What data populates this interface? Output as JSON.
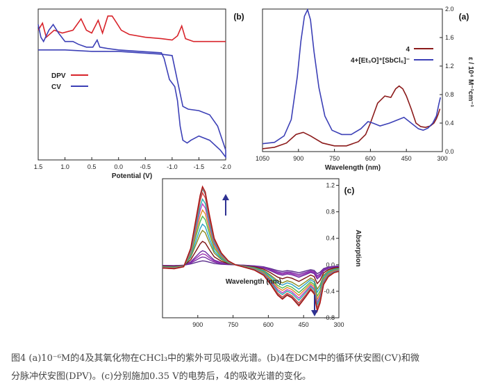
{
  "caption": {
    "line1": "图4 (a)10⁻⁶M的4及其氧化物在CHCl₃中的紫外可见吸收光谱。(b)4在DCM中的循环伏安图(CV)和微",
    "line2": "分脉冲伏安图(DPV)。(c)分别施加0.35 V的电势后，4的吸收光谱的变化。"
  },
  "colors": {
    "red": "#d8232a",
    "blue": "#3b3fb6",
    "dark_red": "#8b1a1a",
    "arrow": "#2e3192"
  },
  "chart_data": [
    {
      "panel": "(a)",
      "type": "line",
      "xlabel": "Wavelength (nm)",
      "ylabel": "ε / 10⁴ M⁻¹cm⁻¹",
      "xlim": [
        1050,
        300
      ],
      "ylim": [
        0.0,
        2.0
      ],
      "xticks": [
        1050,
        900,
        750,
        600,
        450,
        300
      ],
      "yticks": [
        0.0,
        0.4,
        0.8,
        1.2,
        1.6,
        2.0
      ],
      "legend": [
        "4",
        "4+[Et₃O]⁺[SbCl₆]⁻"
      ],
      "legend_position": "top-right",
      "series": [
        {
          "name": "4",
          "color": "#8b1a1a",
          "points": [
            [
              1050,
              0.04
            ],
            [
              1000,
              0.06
            ],
            [
              950,
              0.12
            ],
            [
              910,
              0.24
            ],
            [
              880,
              0.27
            ],
            [
              850,
              0.22
            ],
            [
              800,
              0.12
            ],
            [
              750,
              0.08
            ],
            [
              700,
              0.08
            ],
            [
              650,
              0.14
            ],
            [
              620,
              0.24
            ],
            [
              600,
              0.4
            ],
            [
              570,
              0.68
            ],
            [
              540,
              0.78
            ],
            [
              515,
              0.76
            ],
            [
              495,
              0.88
            ],
            [
              480,
              0.92
            ],
            [
              465,
              0.88
            ],
            [
              450,
              0.78
            ],
            [
              430,
              0.6
            ],
            [
              410,
              0.4
            ],
            [
              390,
              0.35
            ],
            [
              370,
              0.34
            ],
            [
              350,
              0.36
            ],
            [
              335,
              0.4
            ],
            [
              325,
              0.46
            ],
            [
              318,
              0.52
            ],
            [
              310,
              0.6
            ]
          ]
        },
        {
          "name": "4+[Et₃O]⁺[SbCl₆]⁻",
          "color": "#3b3fb6",
          "points": [
            [
              1050,
              0.11
            ],
            [
              1000,
              0.13
            ],
            [
              960,
              0.22
            ],
            [
              930,
              0.45
            ],
            [
              905,
              1.05
            ],
            [
              890,
              1.55
            ],
            [
              875,
              1.9
            ],
            [
              862,
              1.99
            ],
            [
              850,
              1.85
            ],
            [
              835,
              1.4
            ],
            [
              815,
              0.9
            ],
            [
              790,
              0.5
            ],
            [
              760,
              0.3
            ],
            [
              720,
              0.24
            ],
            [
              680,
              0.24
            ],
            [
              640,
              0.32
            ],
            [
              610,
              0.42
            ],
            [
              590,
              0.4
            ],
            [
              560,
              0.36
            ],
            [
              520,
              0.4
            ],
            [
              490,
              0.44
            ],
            [
              460,
              0.48
            ],
            [
              430,
              0.4
            ],
            [
              400,
              0.32
            ],
            [
              380,
              0.3
            ],
            [
              360,
              0.33
            ],
            [
              340,
              0.4
            ],
            [
              325,
              0.5
            ],
            [
              315,
              0.66
            ],
            [
              308,
              0.76
            ]
          ]
        }
      ]
    },
    {
      "panel": "(b)",
      "type": "line",
      "xlabel": "Potential (V)",
      "ylabel": "",
      "xlim": [
        1.5,
        -2.0
      ],
      "xticks": [
        1.5,
        1.0,
        0.5,
        0.0,
        -0.5,
        -1.0,
        -1.5,
        -2.0
      ],
      "xticklabels": [
        "1.5",
        "1.0",
        "0.5",
        "0.0",
        "-0.5",
        "-1.0",
        "-1.5",
        "-2.0"
      ],
      "legend": [
        "DPV",
        "CV"
      ],
      "legend_position": "center-left",
      "series": [
        {
          "name": "DPV",
          "color": "#d8232a",
          "points": [
            [
              1.5,
              0.9
            ],
            [
              1.42,
              0.95
            ],
            [
              1.35,
              0.85
            ],
            [
              1.2,
              0.9
            ],
            [
              1.05,
              0.88
            ],
            [
              0.85,
              0.9
            ],
            [
              0.7,
              0.98
            ],
            [
              0.6,
              0.9
            ],
            [
              0.5,
              0.88
            ],
            [
              0.38,
              0.97
            ],
            [
              0.3,
              0.88
            ],
            [
              0.2,
              1.0
            ],
            [
              0.12,
              1.0
            ],
            [
              0.05,
              0.96
            ],
            [
              -0.05,
              0.9
            ],
            [
              -0.2,
              0.87
            ],
            [
              -0.5,
              0.85
            ],
            [
              -0.8,
              0.84
            ],
            [
              -1.0,
              0.83
            ],
            [
              -1.1,
              0.86
            ],
            [
              -1.18,
              0.93
            ],
            [
              -1.25,
              0.84
            ],
            [
              -1.4,
              0.82
            ],
            [
              -1.7,
              0.82
            ],
            [
              -2.0,
              0.82
            ]
          ]
        },
        {
          "name": "CV",
          "color": "#3b3fb6",
          "points": [
            [
              1.5,
              0.94
            ],
            [
              1.45,
              0.85
            ],
            [
              1.4,
              0.82
            ],
            [
              1.3,
              0.9
            ],
            [
              1.22,
              0.94
            ],
            [
              1.12,
              0.88
            ],
            [
              1.0,
              0.82
            ],
            [
              0.85,
              0.82
            ],
            [
              0.75,
              0.8
            ],
            [
              0.6,
              0.78
            ],
            [
              0.48,
              0.78
            ],
            [
              0.4,
              0.83
            ],
            [
              0.35,
              0.78
            ],
            [
              0.2,
              0.77
            ],
            [
              0.0,
              0.76
            ],
            [
              -0.4,
              0.75
            ],
            [
              -0.8,
              0.74
            ],
            [
              -0.85,
              0.7
            ],
            [
              -0.95,
              0.55
            ],
            [
              -1.05,
              0.5
            ],
            [
              -1.1,
              0.4
            ],
            [
              -1.15,
              0.22
            ],
            [
              -1.2,
              0.12
            ],
            [
              -1.28,
              0.1
            ],
            [
              -1.35,
              0.12
            ],
            [
              -1.5,
              0.15
            ],
            [
              -1.7,
              0.12
            ],
            [
              -1.9,
              0.05
            ],
            [
              -2.0,
              0.0
            ],
            [
              -2.0,
              0.05
            ],
            [
              -1.85,
              0.22
            ],
            [
              -1.7,
              0.3
            ],
            [
              -1.5,
              0.33
            ],
            [
              -1.3,
              0.34
            ],
            [
              -1.2,
              0.36
            ],
            [
              -1.1,
              0.54
            ],
            [
              -1.0,
              0.72
            ],
            [
              -0.8,
              0.73
            ],
            [
              -0.4,
              0.74
            ],
            [
              0.0,
              0.75
            ],
            [
              0.5,
              0.75
            ],
            [
              1.0,
              0.76
            ],
            [
              1.5,
              0.76
            ]
          ]
        }
      ]
    },
    {
      "panel": "(c)",
      "type": "line",
      "xlabel": "Wavelength (nm)",
      "ylabel": "Absorption",
      "xlim": [
        1050,
        300
      ],
      "ylim": [
        -0.8,
        1.3
      ],
      "xticks": [
        900,
        750,
        600,
        450,
        300
      ],
      "yticks": [
        -0.8,
        -0.4,
        0.0,
        0.4,
        0.8,
        1.2
      ],
      "yticklabels": [
        "-0.8",
        "-0.4",
        "0.0",
        "0.4",
        "0.8",
        "1.2"
      ],
      "annotations": [
        "up arrow at 880 nm peak (increasing)",
        "down arrow at 390 nm (decreasing)"
      ],
      "series": [
        {
          "name": "",
          "color": "#5a2d8c",
          "scale": 0.05
        },
        {
          "name": "",
          "color": "#7b2fa8",
          "scale": 0.1
        },
        {
          "name": "",
          "color": "#9b30b0",
          "scale": 0.14
        },
        {
          "name": "",
          "color": "#6d2aa0",
          "scale": 0.18
        },
        {
          "name": "",
          "color": "#7a1010",
          "scale": 0.3
        },
        {
          "name": "",
          "color": "#8a8a20",
          "scale": 0.44
        },
        {
          "name": "",
          "color": "#2aa0c8",
          "scale": 0.52
        },
        {
          "name": "",
          "color": "#4cb84c",
          "scale": 0.62
        },
        {
          "name": "",
          "color": "#e08a20",
          "scale": 0.7
        },
        {
          "name": "",
          "color": "#c040c0",
          "scale": 0.78
        },
        {
          "name": "",
          "color": "#20b0b0",
          "scale": 0.84
        },
        {
          "name": "",
          "color": "#e04040",
          "scale": 0.92
        },
        {
          "name": "",
          "color": "#707070",
          "scale": 0.97
        },
        {
          "name": "",
          "color": "#b01010",
          "scale": 1.0
        }
      ],
      "base_shape": [
        [
          1050,
          -0.05
        ],
        [
          1000,
          -0.06
        ],
        [
          960,
          -0.03
        ],
        [
          930,
          0.25
        ],
        [
          905,
          0.75
        ],
        [
          890,
          1.05
        ],
        [
          880,
          1.18
        ],
        [
          868,
          1.1
        ],
        [
          850,
          0.75
        ],
        [
          830,
          0.4
        ],
        [
          800,
          0.18
        ],
        [
          770,
          0.06
        ],
        [
          740,
          0.0
        ],
        [
          700,
          -0.04
        ],
        [
          660,
          -0.08
        ],
        [
          620,
          -0.16
        ],
        [
          590,
          -0.3
        ],
        [
          560,
          -0.46
        ],
        [
          540,
          -0.52
        ],
        [
          520,
          -0.46
        ],
        [
          500,
          -0.5
        ],
        [
          480,
          -0.58
        ],
        [
          470,
          -0.62
        ],
        [
          455,
          -0.55
        ],
        [
          440,
          -0.48
        ],
        [
          420,
          -0.38
        ],
        [
          405,
          -0.44
        ],
        [
          392,
          -0.7
        ],
        [
          380,
          -0.58
        ],
        [
          365,
          -0.3
        ],
        [
          345,
          -0.18
        ],
        [
          320,
          -0.12
        ],
        [
          300,
          -0.1
        ]
      ]
    }
  ]
}
